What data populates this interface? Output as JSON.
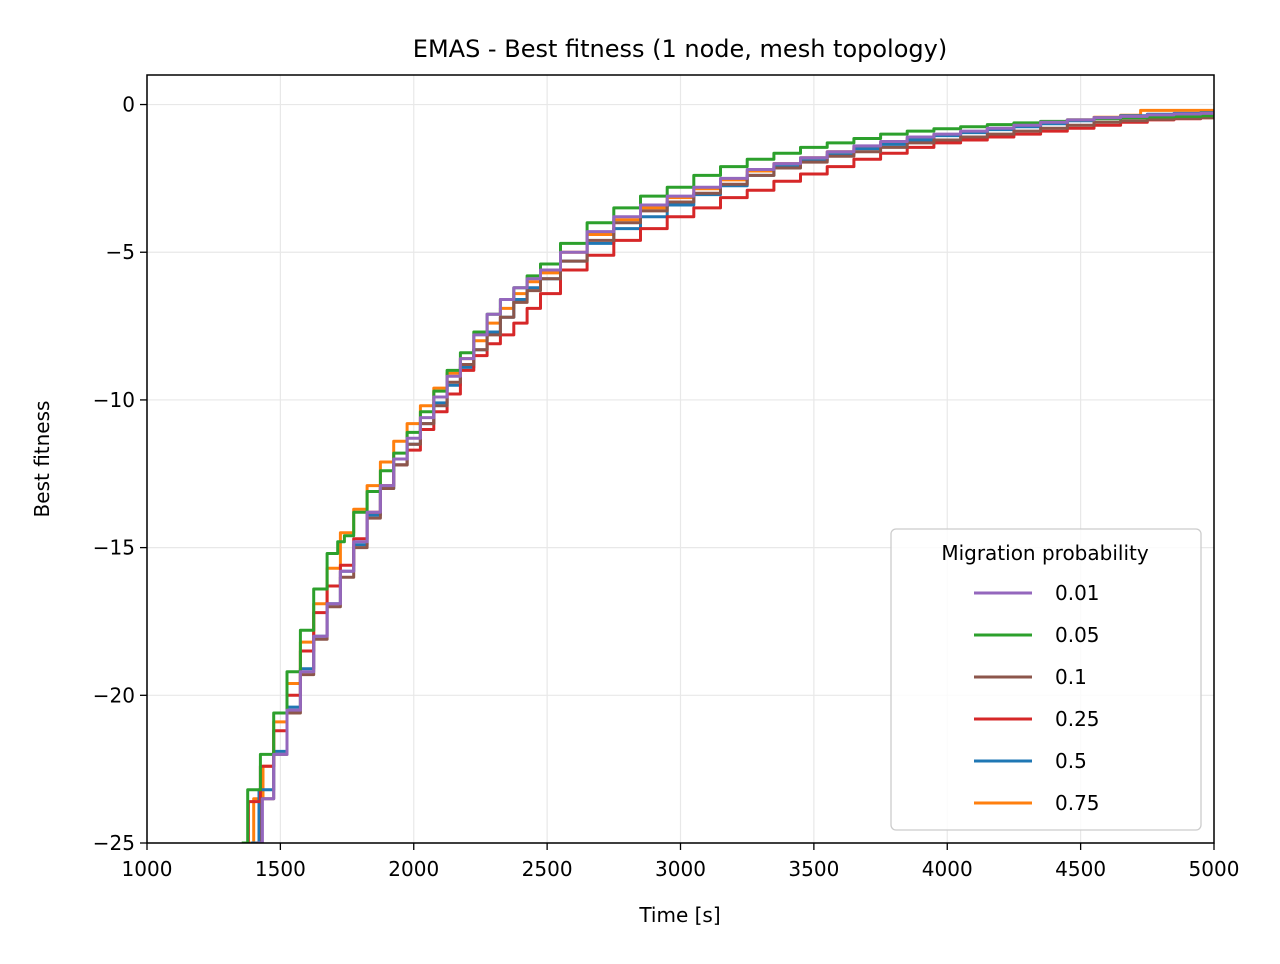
{
  "chart_data": {
    "type": "line",
    "title": "EMAS - Best fitness (1 node, mesh topology)",
    "xlabel": "Time [s]",
    "ylabel": "Best fitness",
    "xlim": [
      1000,
      5000
    ],
    "ylim": [
      -25,
      1
    ],
    "xticks": [
      1000,
      1500,
      2000,
      2500,
      3000,
      3500,
      4000,
      4500,
      5000
    ],
    "yticks": [
      0,
      -5,
      -10,
      -15,
      -20,
      -25
    ],
    "xtick_labels": [
      "1000",
      "1500",
      "2000",
      "2500",
      "3000",
      "3500",
      "4000",
      "4500",
      "5000"
    ],
    "ytick_labels": [
      "0",
      "−5",
      "−10",
      "−15",
      "−20",
      "−25"
    ],
    "grid": true,
    "legend": {
      "title": "Migration probability",
      "placement": "lower-right"
    },
    "series": [
      {
        "name": "0.01",
        "color": "#9467bd",
        "x": [
          1415,
          1450,
          1500,
          1550,
          1600,
          1650,
          1700,
          1750,
          1800,
          1850,
          1900,
          1950,
          2000,
          2050,
          2100,
          2150,
          2200,
          2250,
          2300,
          2350,
          2400,
          2450,
          2500,
          2600,
          2700,
          2800,
          2900,
          3000,
          3100,
          3200,
          3300,
          3400,
          3500,
          3600,
          3700,
          3800,
          3900,
          4000,
          4100,
          4200,
          4300,
          4400,
          4500,
          4600,
          4700,
          4800,
          4900,
          5000
        ],
        "y": [
          -25,
          -23.5,
          -22,
          -20.5,
          -19.2,
          -18,
          -16.9,
          -15.8,
          -14.8,
          -13.8,
          -12.9,
          -12,
          -11.3,
          -10.6,
          -9.9,
          -9.2,
          -8.6,
          -7.8,
          -7.1,
          -6.6,
          -6.2,
          -5.9,
          -5.6,
          -5.0,
          -4.3,
          -3.8,
          -3.4,
          -3.1,
          -2.8,
          -2.5,
          -2.2,
          -2.0,
          -1.8,
          -1.6,
          -1.4,
          -1.25,
          -1.1,
          -1.0,
          -0.9,
          -0.8,
          -0.7,
          -0.6,
          -0.52,
          -0.45,
          -0.4,
          -0.35,
          -0.32,
          -0.3
        ]
      },
      {
        "name": "0.05",
        "color": "#2ca02c",
        "x": [
          1355,
          1400,
          1450,
          1500,
          1550,
          1600,
          1650,
          1700,
          1730,
          1750,
          1800,
          1850,
          1900,
          1950,
          2000,
          2050,
          2100,
          2150,
          2200,
          2250,
          2300,
          2350,
          2400,
          2450,
          2500,
          2600,
          2700,
          2800,
          2900,
          3000,
          3100,
          3200,
          3300,
          3400,
          3500,
          3600,
          3700,
          3800,
          3900,
          4000,
          4100,
          4200,
          4300,
          4400,
          4500,
          4600,
          4700,
          4800,
          4900,
          5000
        ],
        "y": [
          -25,
          -23.2,
          -22,
          -20.6,
          -19.2,
          -17.8,
          -16.4,
          -15.2,
          -14.8,
          -14.6,
          -13.8,
          -13.1,
          -12.4,
          -11.8,
          -11.1,
          -10.4,
          -9.7,
          -9.0,
          -8.4,
          -7.7,
          -7.1,
          -6.6,
          -6.2,
          -5.8,
          -5.4,
          -4.7,
          -4.0,
          -3.5,
          -3.1,
          -2.8,
          -2.4,
          -2.1,
          -1.85,
          -1.65,
          -1.45,
          -1.3,
          -1.15,
          -1.0,
          -0.9,
          -0.82,
          -0.75,
          -0.68,
          -0.62,
          -0.57,
          -0.52,
          -0.48,
          -0.45,
          -0.42,
          -0.4,
          -0.38
        ]
      },
      {
        "name": "0.1",
        "color": "#8c564b",
        "x": [
          1410,
          1450,
          1500,
          1550,
          1600,
          1650,
          1700,
          1750,
          1800,
          1850,
          1900,
          1950,
          2000,
          2050,
          2100,
          2150,
          2200,
          2250,
          2300,
          2350,
          2400,
          2450,
          2500,
          2600,
          2700,
          2800,
          2900,
          3000,
          3100,
          3200,
          3300,
          3400,
          3500,
          3600,
          3700,
          3800,
          3900,
          4000,
          4100,
          4200,
          4300,
          4400,
          4500,
          4600,
          4700,
          4800,
          4900,
          5000
        ],
        "y": [
          -25,
          -23.5,
          -22,
          -20.6,
          -19.3,
          -18.1,
          -17.0,
          -16.0,
          -15.0,
          -14.0,
          -13.0,
          -12.2,
          -11.5,
          -10.8,
          -10.2,
          -9.4,
          -8.8,
          -8.3,
          -7.8,
          -7.2,
          -6.7,
          -6.3,
          -5.9,
          -5.3,
          -4.6,
          -4.0,
          -3.6,
          -3.3,
          -3.0,
          -2.7,
          -2.4,
          -2.15,
          -1.95,
          -1.75,
          -1.6,
          -1.45,
          -1.3,
          -1.2,
          -1.1,
          -1.0,
          -0.9,
          -0.8,
          -0.7,
          -0.6,
          -0.55,
          -0.5,
          -0.47,
          -0.45
        ]
      },
      {
        "name": "0.25",
        "color": "#d62728",
        "x": [
          1360,
          1400,
          1450,
          1500,
          1550,
          1600,
          1650,
          1700,
          1750,
          1800,
          1850,
          1900,
          1950,
          2000,
          2050,
          2100,
          2150,
          2200,
          2250,
          2300,
          2350,
          2400,
          2450,
          2500,
          2600,
          2700,
          2800,
          2900,
          3000,
          3100,
          3200,
          3300,
          3400,
          3500,
          3600,
          3700,
          3800,
          3900,
          4000,
          4100,
          4200,
          4300,
          4400,
          4500,
          4600,
          4700,
          4800,
          4900,
          5000
        ],
        "y": [
          -25,
          -23.6,
          -22.4,
          -21.2,
          -20.0,
          -18.5,
          -17.2,
          -16.3,
          -15.6,
          -14.7,
          -13.8,
          -12.9,
          -12.2,
          -11.7,
          -11.0,
          -10.4,
          -9.8,
          -9.0,
          -8.5,
          -8.1,
          -7.8,
          -7.4,
          -6.9,
          -6.4,
          -5.6,
          -5.1,
          -4.6,
          -4.2,
          -3.8,
          -3.5,
          -3.15,
          -2.9,
          -2.6,
          -2.35,
          -2.1,
          -1.85,
          -1.65,
          -1.45,
          -1.3,
          -1.2,
          -1.1,
          -1.0,
          -0.9,
          -0.8,
          -0.7,
          -0.6,
          -0.52,
          -0.48,
          -0.45
        ]
      },
      {
        "name": "0.5",
        "color": "#1f77b4",
        "x": [
          1390,
          1450,
          1500,
          1550,
          1600,
          1650,
          1700,
          1750,
          1800,
          1850,
          1900,
          1950,
          2000,
          2050,
          2100,
          2150,
          2200,
          2250,
          2300,
          2350,
          2400,
          2450,
          2500,
          2600,
          2700,
          2800,
          2900,
          3000,
          3100,
          3200,
          3300,
          3400,
          3500,
          3600,
          3700,
          3800,
          3900,
          4000,
          4100,
          4200,
          4300,
          4400,
          4500,
          4600,
          4700,
          4800,
          4900,
          5000
        ],
        "y": [
          -25,
          -23.2,
          -21.9,
          -20.4,
          -19.1,
          -18.0,
          -16.9,
          -15.8,
          -14.9,
          -13.9,
          -13.0,
          -12.2,
          -11.5,
          -10.8,
          -10.1,
          -9.5,
          -8.9,
          -8.3,
          -7.7,
          -7.2,
          -6.6,
          -6.2,
          -5.9,
          -5.3,
          -4.7,
          -4.2,
          -3.8,
          -3.4,
          -3.05,
          -2.75,
          -2.4,
          -2.1,
          -1.9,
          -1.7,
          -1.5,
          -1.35,
          -1.2,
          -1.05,
          -0.95,
          -0.85,
          -0.75,
          -0.65,
          -0.55,
          -0.45,
          -0.38,
          -0.33,
          -0.3,
          -0.28
        ]
      },
      {
        "name": "0.75",
        "color": "#ff7f0e",
        "x": [
          1380,
          1420,
          1450,
          1500,
          1550,
          1600,
          1650,
          1700,
          1750,
          1800,
          1850,
          1900,
          1950,
          2000,
          2050,
          2100,
          2150,
          2200,
          2250,
          2300,
          2350,
          2400,
          2450,
          2500,
          2600,
          2700,
          2800,
          2900,
          3000,
          3100,
          3200,
          3300,
          3400,
          3500,
          3600,
          3700,
          3800,
          3900,
          4000,
          4100,
          4200,
          4300,
          4400,
          4500,
          4600,
          4700,
          4750,
          4800,
          4900,
          5000
        ],
        "y": [
          -25,
          -23.5,
          -22.4,
          -20.9,
          -19.6,
          -18.2,
          -16.9,
          -15.7,
          -14.5,
          -13.7,
          -12.9,
          -12.1,
          -11.4,
          -10.8,
          -10.2,
          -9.6,
          -9.1,
          -8.6,
          -8.0,
          -7.4,
          -6.9,
          -6.4,
          -6.0,
          -5.7,
          -5.0,
          -4.4,
          -3.9,
          -3.5,
          -3.15,
          -2.85,
          -2.55,
          -2.25,
          -2.0,
          -1.8,
          -1.6,
          -1.42,
          -1.27,
          -1.14,
          -1.02,
          -0.92,
          -0.82,
          -0.72,
          -0.62,
          -0.52,
          -0.43,
          -0.36,
          -0.2,
          -0.2,
          -0.2,
          -0.2
        ]
      }
    ]
  }
}
